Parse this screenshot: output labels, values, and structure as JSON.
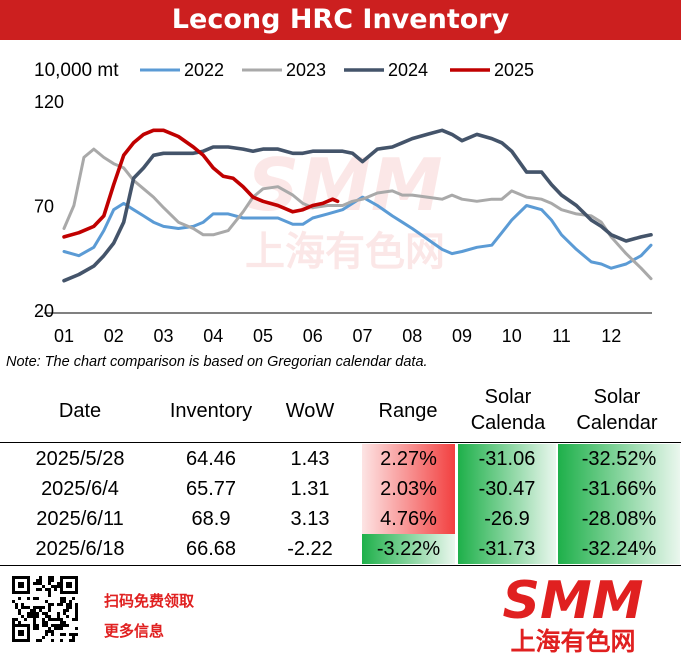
{
  "title": "Lecong HRC Inventory",
  "note": "Note: The chart comparison is based on Gregorian calendar data.",
  "chart_data": {
    "type": "line",
    "title": "Lecong HRC Inventory",
    "ylabel": "10,000  mt",
    "ylim": [
      20,
      120
    ],
    "yticks": [
      "20",
      "70",
      "120"
    ],
    "xlabels": [
      "01",
      "02",
      "03",
      "04",
      "05",
      "06",
      "07",
      "08",
      "09",
      "10",
      "11",
      "12"
    ],
    "xlim": [
      1,
      12.8
    ],
    "grid": false,
    "legend": "top",
    "series": [
      {
        "name": "2022",
        "color": "#5b9bd5",
        "x": [
          1,
          1.3,
          1.6,
          1.8,
          2.0,
          2.2,
          2.4,
          2.6,
          2.8,
          3.0,
          3.3,
          3.6,
          3.8,
          4.0,
          4.3,
          4.6,
          4.8,
          5.0,
          5.3,
          5.6,
          5.8,
          6.0,
          6.3,
          6.6,
          6.8,
          7.0,
          7.3,
          7.6,
          7.8,
          8.0,
          8.3,
          8.6,
          8.8,
          9.0,
          9.3,
          9.6,
          9.8,
          10.0,
          10.3,
          10.6,
          10.8,
          11.0,
          11.3,
          11.6,
          11.8,
          12.0,
          12.3,
          12.6,
          12.8
        ],
        "y": [
          48,
          46,
          50,
          58,
          68,
          71,
          68,
          65,
          62,
          60,
          59,
          60,
          62,
          66,
          66,
          64,
          64,
          64,
          64,
          61,
          61,
          64,
          66,
          68,
          71,
          74,
          70,
          65,
          62,
          59,
          54,
          49,
          47,
          48,
          50,
          51,
          57,
          63,
          70,
          68,
          63,
          56,
          49,
          43,
          42,
          40,
          42,
          46,
          51
        ]
      },
      {
        "name": "2023",
        "color": "#a9a9a9",
        "x": [
          1,
          1.2,
          1.4,
          1.6,
          1.8,
          2.0,
          2.2,
          2.4,
          2.6,
          2.8,
          3.0,
          3.3,
          3.6,
          3.8,
          4.0,
          4.3,
          4.6,
          4.8,
          5.0,
          5.3,
          5.6,
          5.8,
          6.0,
          6.3,
          6.6,
          6.8,
          7.0,
          7.3,
          7.6,
          7.8,
          8.0,
          8.3,
          8.6,
          8.8,
          9.0,
          9.3,
          9.6,
          9.8,
          10.0,
          10.3,
          10.6,
          10.8,
          11.0,
          11.3,
          11.6,
          11.8,
          12.0,
          12.3,
          12.6,
          12.8
        ],
        "y": [
          59,
          70,
          93,
          97,
          93,
          90,
          88,
          82,
          78,
          74,
          69,
          62,
          59,
          56,
          56,
          58,
          67,
          74,
          78,
          79,
          75,
          71,
          69,
          70,
          70,
          72,
          73,
          76,
          77,
          75,
          75,
          74,
          73,
          75,
          73,
          72,
          73,
          73,
          77,
          74,
          73,
          71,
          68,
          66,
          65,
          62,
          55,
          47,
          40,
          35
        ]
      },
      {
        "name": "2024",
        "color": "#44546a",
        "x": [
          1,
          1.3,
          1.6,
          1.8,
          2.0,
          2.2,
          2.4,
          2.6,
          2.8,
          3.0,
          3.3,
          3.6,
          3.8,
          4.0,
          4.3,
          4.6,
          4.8,
          5.0,
          5.3,
          5.6,
          5.8,
          6.0,
          6.3,
          6.6,
          6.8,
          7.0,
          7.3,
          7.6,
          7.8,
          8.0,
          8.3,
          8.6,
          8.8,
          9.0,
          9.3,
          9.6,
          9.8,
          10.0,
          10.3,
          10.6,
          10.8,
          11.0,
          11.3,
          11.6,
          11.8,
          12.0,
          12.3,
          12.6,
          12.8
        ],
        "y": [
          34,
          37,
          41,
          46,
          52,
          62,
          83,
          88,
          94,
          95,
          95,
          95,
          96,
          98,
          98,
          97,
          96,
          97,
          97,
          95,
          95,
          96,
          96,
          96,
          95,
          91,
          97,
          98,
          100,
          102,
          104,
          106,
          104,
          101,
          104,
          102,
          100,
          96,
          86,
          86,
          80,
          75,
          70,
          63,
          60,
          56,
          53,
          55,
          56
        ]
      },
      {
        "name": "2025",
        "color": "#c00000",
        "x": [
          1,
          1.3,
          1.6,
          1.8,
          2.0,
          2.2,
          2.4,
          2.6,
          2.8,
          3.0,
          3.3,
          3.6,
          3.8,
          4.0,
          4.2,
          4.4,
          4.6,
          4.8,
          5.0,
          5.3,
          5.6,
          5.8,
          6.0,
          6.2,
          6.4,
          6.5
        ],
        "y": [
          55,
          57,
          60,
          65,
          80,
          94,
          100,
          104,
          106,
          106,
          103,
          98,
          94,
          88,
          84,
          83,
          79,
          74,
          72,
          70,
          67,
          68,
          70,
          71,
          73,
          72
        ]
      }
    ]
  },
  "table": {
    "headers": [
      {
        "line1": "Date",
        "line2": ""
      },
      {
        "line1": "Inventory",
        "line2": ""
      },
      {
        "line1": "WoW",
        "line2": ""
      },
      {
        "line1": "Range",
        "line2": ""
      },
      {
        "line1": "Solar",
        "line2": "Calenda"
      },
      {
        "line1": "Solar",
        "line2": "Calendar"
      }
    ],
    "rows": [
      [
        "2025/5/28",
        "64.46",
        "1.43",
        "2.27%",
        "-31.06",
        "-32.52%"
      ],
      [
        "2025/6/4",
        "65.77",
        "1.31",
        "2.03%",
        "-30.47",
        "-31.66%"
      ],
      [
        "2025/6/11",
        "68.9",
        "3.13",
        "4.76%",
        "-26.9",
        "-28.08%"
      ],
      [
        "2025/6/18",
        "66.68",
        "-2.22",
        "-3.22%",
        "-31.73",
        "-32.24%"
      ]
    ]
  },
  "footer": {
    "promo_line1": "扫码免费领取",
    "promo_line2": "更多信息",
    "logo_text": "SMM",
    "logo_subtext": "上海有色网"
  },
  "watermark": {
    "logo_text": "SMM",
    "logo_subtext": "上海有色网"
  },
  "colors": {
    "title_bg": "#cc1f1f",
    "positive_bar": "#f24040",
    "negative_bar": "#1eb04a",
    "brand_red": "#e02020"
  }
}
